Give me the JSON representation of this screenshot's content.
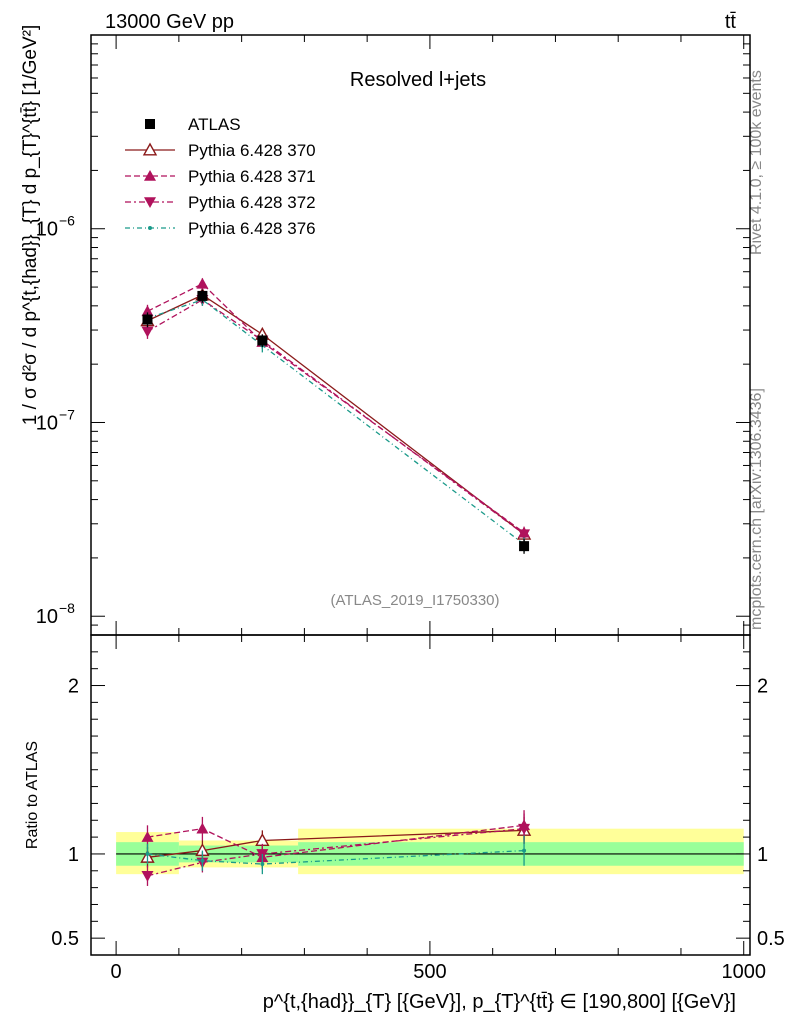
{
  "header": {
    "left": "13000 GeV pp",
    "right": "tt̄"
  },
  "side": {
    "rivet": "Rivet 4.1.0, ≥ 100k events",
    "mcplots": "mcplots.cern.ch [arXiv:1306.3436]"
  },
  "chart_data": [
    {
      "type": "line",
      "title": "Resolved l+jets",
      "ref_label": "(ATLAS_2019_I1750330)",
      "ylabel": "1 / σ d²σ / d p^{t,{had}}_{T} d p_{T}^{tt̄} [1/GeV²]",
      "yscale": "log",
      "ylim": [
        8e-09,
        1e-05
      ],
      "xlim": [
        -40,
        1010
      ],
      "y_ticks": [
        {
          "v": 1e-08,
          "label": "10",
          "exp": "−8"
        },
        {
          "v": 1e-07,
          "label": "10",
          "exp": "−7"
        },
        {
          "v": 1e-06,
          "label": "10",
          "exp": "−6"
        }
      ],
      "x": [
        50,
        137.5,
        233,
        650
      ],
      "x_edges": [
        0,
        100,
        175,
        290,
        1000
      ],
      "legend": [
        {
          "name": "ATLAS",
          "color": "#000000",
          "marker": "square",
          "dash": "none"
        },
        {
          "name": "Pythia 6.428 370",
          "color": "#8b1a1a",
          "marker": "triangle-open",
          "dash": "solid"
        },
        {
          "name": "Pythia 6.428 371",
          "color": "#b0125c",
          "marker": "triangle-up",
          "dash": "6,3"
        },
        {
          "name": "Pythia 6.428 372",
          "color": "#b0125c",
          "marker": "triangle-down",
          "dash": "6,3,2,3"
        },
        {
          "name": "Pythia 6.428 376",
          "color": "#1a9a8a",
          "marker": "dot",
          "dash": "5,3,1,3"
        }
      ],
      "data": {
        "values": [
          3.4e-07,
          4.5e-07,
          2.65e-07,
          2.3e-08
        ],
        "err": [
          3e-08,
          3.5e-08,
          2e-08,
          2e-09
        ]
      },
      "series": [
        {
          "name": "Pythia 6.428 370",
          "values": [
            3.35e-07,
            4.55e-07,
            2.85e-07,
            2.65e-08
          ],
          "err": [
            2.5e-08,
            3e-08,
            2e-08,
            2e-09
          ]
        },
        {
          "name": "Pythia 6.428 371",
          "values": [
            3.75e-07,
            5.2e-07,
            2.6e-07,
            2.7e-08
          ],
          "err": [
            3e-08,
            3.5e-08,
            2e-08,
            2e-09
          ]
        },
        {
          "name": "Pythia 6.428 372",
          "values": [
            2.95e-07,
            4.3e-07,
            2.65e-07,
            2.65e-08
          ],
          "err": [
            2.5e-08,
            3e-08,
            2e-08,
            2e-09
          ]
        },
        {
          "name": "Pythia 6.428 376",
          "values": [
            3.45e-07,
            4.3e-07,
            2.5e-07,
            2.35e-08
          ],
          "err": [
            2.5e-08,
            3e-08,
            2e-08,
            2e-09
          ]
        }
      ]
    },
    {
      "type": "line",
      "ylabel": "Ratio to ATLAS",
      "xlabel": "p^{t,{had}}_{T} [{GeV}], p_{T}^{tt̄} ∈ [190,800] [{GeV}]",
      "ylim": [
        0.4,
        2.3
      ],
      "y_ticks": [
        0.5,
        1,
        2
      ],
      "x_ticks": [
        0,
        500,
        1000
      ],
      "band_stat": [
        [
          0.93,
          1.07
        ],
        [
          0.95,
          1.05
        ],
        [
          0.95,
          1.05
        ],
        [
          0.93,
          1.07
        ]
      ],
      "band_total": [
        [
          0.88,
          1.13
        ],
        [
          0.92,
          1.08
        ],
        [
          0.92,
          1.08
        ],
        [
          0.88,
          1.15
        ]
      ],
      "series": [
        {
          "name": "Pythia 6.428 370",
          "values": [
            0.98,
            1.02,
            1.08,
            1.14
          ],
          "err": [
            0.06,
            0.06,
            0.06,
            0.08
          ]
        },
        {
          "name": "Pythia 6.428 371",
          "values": [
            1.1,
            1.15,
            0.98,
            1.17
          ],
          "err": [
            0.07,
            0.07,
            0.07,
            0.09
          ]
        },
        {
          "name": "Pythia 6.428 372",
          "values": [
            0.87,
            0.95,
            1.0,
            1.15
          ],
          "err": [
            0.06,
            0.06,
            0.06,
            0.09
          ]
        },
        {
          "name": "Pythia 6.428 376",
          "values": [
            1.0,
            0.96,
            0.94,
            1.02
          ],
          "err": [
            0.06,
            0.06,
            0.06,
            0.09
          ]
        }
      ]
    }
  ]
}
